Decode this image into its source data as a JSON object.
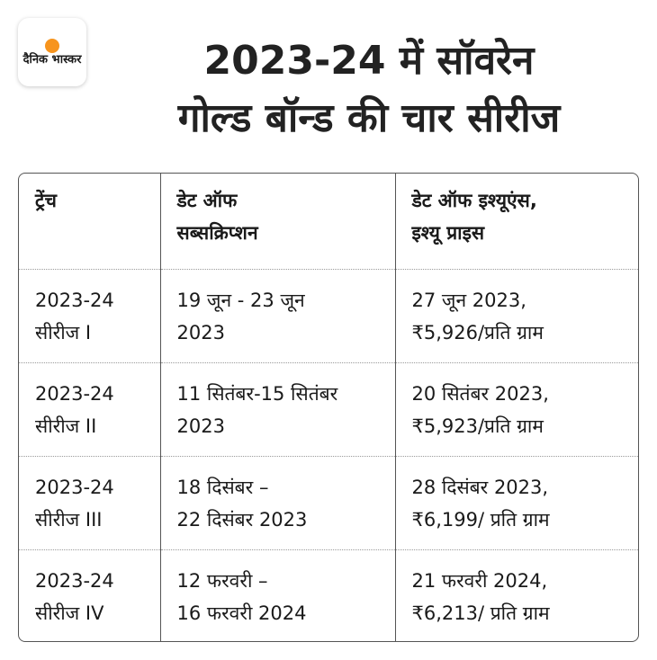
{
  "brand": {
    "logo_text": "दैनिक भास्कर",
    "accent_color": "#f7941d"
  },
  "title": {
    "line1": "2023-24 में सॉवरेन",
    "line2": "गोल्ड बॉन्ड की चार सीरीज"
  },
  "table": {
    "headers": [
      "ट्रेंच",
      "डेट ऑफ\nसब्सक्रिप्शन",
      "डेट ऑफ इश्यूएंस,\nइश्यू प्राइस"
    ],
    "rows": [
      [
        "2023-24\nसीरीज I",
        "19 जून - 23 जून\n2023",
        "27 जून 2023,\n₹5,926/प्रति ग्राम"
      ],
      [
        "2023-24\nसीरीज II",
        "11 सितंबर-15 सितंबर\n2023",
        "20 सितंबर 2023,\n₹5,923/प्रति ग्राम"
      ],
      [
        "2023-24\nसीरीज III",
        "18 दिसंबर –\n22 दिसंबर 2023",
        "28 दिसंबर 2023,\n₹6,199/ प्रति ग्राम"
      ],
      [
        "2023-24\nसीरीज IV",
        "12 फरवरी –\n16 फरवरी 2024",
        "21 फरवरी 2024,\n₹6,213/ प्रति ग्राम"
      ]
    ]
  }
}
